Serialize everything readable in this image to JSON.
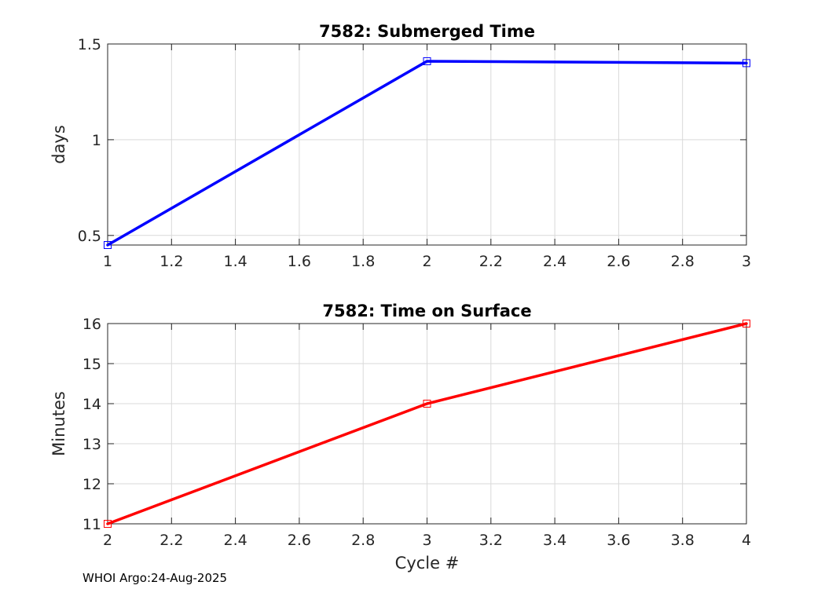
{
  "footer_text": "WHOI Argo:24-Aug-2025",
  "chart_data": [
    {
      "type": "line",
      "title": "7582: Submerged Time",
      "xlabel": "",
      "ylabel": "days",
      "xlim": [
        1,
        3
      ],
      "ylim": [
        0.45,
        1.5
      ],
      "xticks": [
        1,
        1.2,
        1.4,
        1.6,
        1.8,
        2,
        2.2,
        2.4,
        2.6,
        2.8,
        3
      ],
      "yticks": [
        0.5,
        1,
        1.5
      ],
      "grid": true,
      "series": [
        {
          "name": "Submerged Time",
          "color": "#0000ff",
          "marker": "square",
          "x": [
            1,
            2,
            3
          ],
          "y": [
            0.45,
            1.41,
            1.4
          ]
        }
      ]
    },
    {
      "type": "line",
      "title": "7582: Time on Surface",
      "xlabel": "Cycle #",
      "ylabel": "Minutes",
      "xlim": [
        2,
        4
      ],
      "ylim": [
        11,
        16
      ],
      "xticks": [
        2,
        2.2,
        2.4,
        2.6,
        2.8,
        3,
        3.2,
        3.4,
        3.6,
        3.8,
        4
      ],
      "yticks": [
        11,
        12,
        13,
        14,
        15,
        16
      ],
      "grid": true,
      "series": [
        {
          "name": "Time on Surface",
          "color": "#ff0000",
          "marker": "square",
          "x": [
            2,
            3,
            4
          ],
          "y": [
            11,
            14,
            16
          ]
        }
      ]
    }
  ]
}
